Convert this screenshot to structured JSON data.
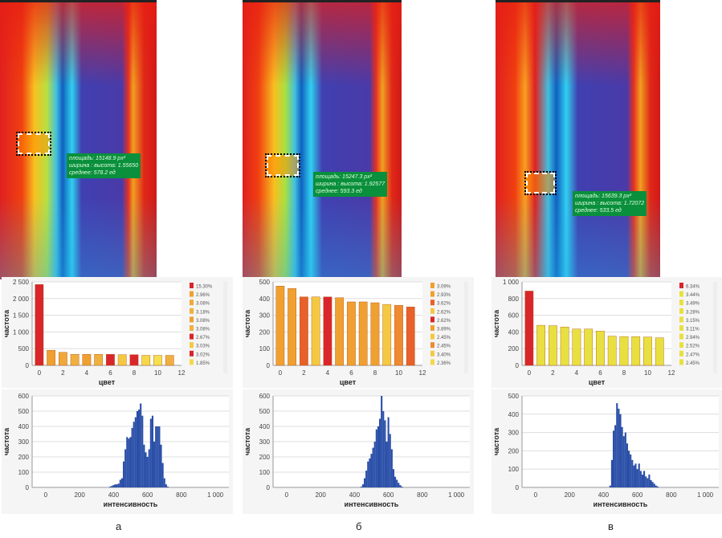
{
  "panels": [
    {
      "label": "а",
      "annotation": {
        "area": "площадь: 15148.9 px²",
        "ratio": "ширина : высота: 1.55650",
        "mean": "среднее: 578.2 ед"
      },
      "legend": [
        "15.30%",
        "2.96%",
        "3.08%",
        "3.18%",
        "3.08%",
        "3.08%",
        "2.67%",
        "3.03%",
        "3.02%",
        "1.85%"
      ],
      "legend_colors": [
        "#d9262b",
        "#f0a030",
        "#f0a838",
        "#f0b040",
        "#f0a030",
        "#f0b040",
        "#d9262b",
        "#f5c842",
        "#d9262b",
        "#f5d84a"
      ]
    },
    {
      "label": "б",
      "annotation": {
        "area": "площадь: 15247.3 px²",
        "ratio": "ширина : высота: 1.92577",
        "mean": "среднее: 593.3 ед"
      },
      "legend": [
        "3.09%",
        "2.93%",
        "3.62%",
        "2.62%",
        "2.62%",
        "3.89%",
        "2.45%",
        "2.45%",
        "3.40%",
        "2.36%"
      ],
      "legend_colors": [
        "#f0a030",
        "#f0a030",
        "#e8602a",
        "#f5c842",
        "#d9262b",
        "#f0a030",
        "#f5c842",
        "#f08a30",
        "#f5c842",
        "#f5d84a"
      ]
    },
    {
      "label": "в",
      "annotation": {
        "area": "площадь: 15639.3 px²",
        "ratio": "ширина : высота: 1.72072",
        "mean": "среднее: 533.5 ед"
      },
      "legend": [
        "6.34%",
        "3.44%",
        "3.49%",
        "3.28%",
        "3.15%",
        "3.11%",
        "2.94%",
        "2.52%",
        "2.47%",
        "2.45%"
      ],
      "legend_colors": [
        "#d9262b",
        "#e8e040",
        "#e8e040",
        "#e8e040",
        "#e8e040",
        "#e8e040",
        "#e8e040",
        "#e8e040",
        "#e8e040",
        "#e8e040"
      ]
    }
  ],
  "chart_data": [
    {
      "type": "bar",
      "xlabel": "цвет",
      "ylabel": "частота",
      "xlim": [
        0,
        12
      ],
      "ylim": [
        0,
        2500
      ],
      "xticks": [
        "0",
        "2",
        "4",
        "6",
        "8",
        "10",
        "12"
      ],
      "yticks": [
        "0",
        "500",
        "1 000",
        "1 500",
        "2 000",
        "2 500"
      ],
      "grid": true,
      "legend": "right",
      "categories": [
        0,
        1,
        2,
        3,
        4,
        5,
        6,
        7,
        8,
        9,
        10,
        11
      ],
      "values": [
        2420,
        450,
        390,
        330,
        330,
        330,
        330,
        320,
        320,
        300,
        300,
        300
      ],
      "colors": [
        "#d9262b",
        "#f0a030",
        "#f0a838",
        "#f0b040",
        "#f0a030",
        "#f0b040",
        "#d9262b",
        "#f5c842",
        "#d9262b",
        "#f5d84a",
        "#f5e050",
        "#f0b040"
      ]
    },
    {
      "type": "bar",
      "xlabel": "цвет",
      "ylabel": "частота",
      "xlim": [
        0,
        12
      ],
      "ylim": [
        0,
        500
      ],
      "xticks": [
        "0",
        "2",
        "4",
        "6",
        "8",
        "10",
        "12"
      ],
      "yticks": [
        "0",
        "100",
        "200",
        "300",
        "400",
        "500"
      ],
      "grid": true,
      "legend": "right",
      "categories": [
        0,
        1,
        2,
        3,
        4,
        5,
        6,
        7,
        8,
        9,
        10,
        11
      ],
      "values": [
        475,
        460,
        410,
        410,
        410,
        405,
        380,
        380,
        375,
        365,
        360,
        350
      ],
      "colors": [
        "#f0a030",
        "#f0a030",
        "#e8602a",
        "#f5c842",
        "#d9262b",
        "#f0a030",
        "#f0a030",
        "#f0a030",
        "#f0a030",
        "#f5c842",
        "#f08a30",
        "#e8602a"
      ]
    },
    {
      "type": "bar",
      "xlabel": "цвет",
      "ylabel": "частота",
      "xlim": [
        0,
        12
      ],
      "ylim": [
        0,
        1000
      ],
      "xticks": [
        "0",
        "2",
        "4",
        "6",
        "8",
        "10",
        "12"
      ],
      "yticks": [
        "0",
        "200",
        "400",
        "600",
        "800",
        "1 000"
      ],
      "grid": true,
      "legend": "right",
      "categories": [
        0,
        1,
        2,
        3,
        4,
        5,
        6,
        7,
        8,
        9,
        10,
        11
      ],
      "values": [
        890,
        480,
        475,
        460,
        435,
        435,
        410,
        350,
        345,
        345,
        340,
        330
      ],
      "colors": [
        "#d9262b",
        "#e8e040",
        "#e8e040",
        "#e8e040",
        "#e8e040",
        "#e8e040",
        "#e8e040",
        "#e8e040",
        "#e8e040",
        "#e8e040",
        "#e8e040",
        "#e8e040"
      ]
    },
    {
      "type": "bar",
      "xlabel": "интенсивность",
      "ylabel": "частота",
      "xlim": [
        0,
        1000
      ],
      "ylim": [
        0,
        600
      ],
      "xticks": [
        "0",
        "200",
        "400",
        "600",
        "800",
        "1 000"
      ],
      "yticks": [
        "0",
        "100",
        "200",
        "300",
        "400",
        "500",
        "600"
      ],
      "grid": true,
      "color": "#2a4fa8",
      "x": [
        380,
        390,
        400,
        410,
        420,
        430,
        440,
        450,
        460,
        470,
        480,
        490,
        500,
        510,
        520,
        530,
        540,
        550,
        560,
        570,
        580,
        590,
        600,
        610,
        620,
        630,
        640,
        650,
        660,
        670,
        680,
        690,
        700,
        710,
        720
      ],
      "values": [
        5,
        10,
        15,
        20,
        20,
        25,
        50,
        60,
        170,
        250,
        330,
        320,
        330,
        390,
        430,
        460,
        500,
        510,
        550,
        470,
        280,
        230,
        200,
        250,
        450,
        470,
        300,
        400,
        400,
        400,
        280,
        160,
        60,
        20,
        5
      ]
    },
    {
      "type": "bar",
      "xlabel": "интенсивность",
      "ylabel": "частота",
      "xlim": [
        0,
        1000
      ],
      "ylim": [
        0,
        600
      ],
      "xticks": [
        "0",
        "200",
        "400",
        "600",
        "800",
        "1 000"
      ],
      "yticks": [
        "0",
        "100",
        "200",
        "300",
        "400",
        "500",
        "600"
      ],
      "grid": true,
      "color": "#2a4fa8",
      "x": [
        440,
        450,
        460,
        470,
        480,
        490,
        500,
        510,
        520,
        530,
        540,
        550,
        560,
        570,
        580,
        590,
        600,
        610,
        620,
        630,
        640,
        650,
        660,
        670,
        680
      ],
      "values": [
        5,
        20,
        60,
        110,
        170,
        190,
        220,
        260,
        300,
        380,
        400,
        450,
        600,
        500,
        440,
        300,
        460,
        350,
        250,
        120,
        70,
        50,
        30,
        15,
        5
      ]
    },
    {
      "type": "bar",
      "xlabel": "интенсивность",
      "ylabel": "частота",
      "xlim": [
        0,
        1000
      ],
      "ylim": [
        0,
        500
      ],
      "xticks": [
        "0",
        "200",
        "400",
        "600",
        "800",
        "1 000"
      ],
      "yticks": [
        "0",
        "100",
        "200",
        "300",
        "400",
        "500"
      ],
      "grid": true,
      "color": "#2a4fa8",
      "x": [
        440,
        450,
        460,
        470,
        480,
        490,
        500,
        510,
        520,
        530,
        540,
        550,
        560,
        570,
        580,
        590,
        600,
        610,
        620,
        630,
        640,
        650,
        660,
        670,
        680,
        690,
        700,
        710,
        720
      ],
      "values": [
        10,
        150,
        310,
        340,
        460,
        430,
        400,
        330,
        280,
        300,
        240,
        200,
        180,
        150,
        120,
        130,
        100,
        130,
        90,
        70,
        90,
        60,
        50,
        70,
        40,
        30,
        20,
        10,
        5
      ]
    }
  ]
}
